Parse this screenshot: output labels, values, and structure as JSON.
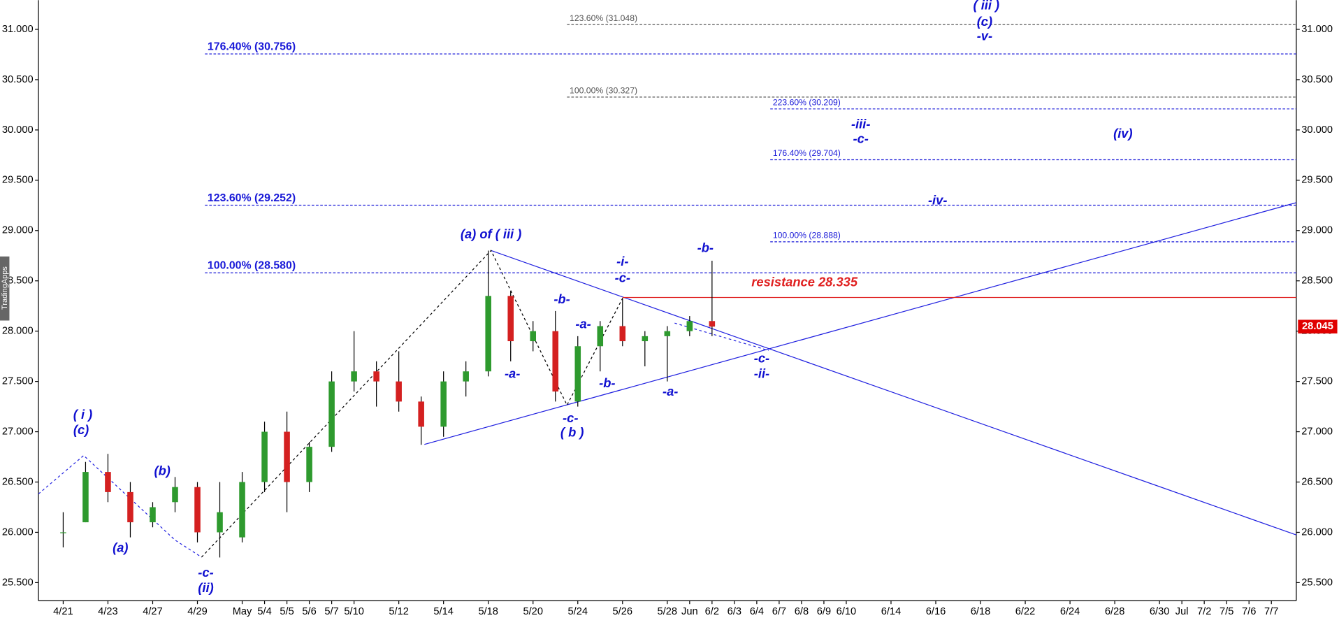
{
  "chart_data": {
    "type": "candlestick",
    "watermark": "TradingApps",
    "categories": [
      "4/21",
      null,
      "4/23",
      null,
      "4/27",
      null,
      "4/29",
      null,
      "May",
      "5/4",
      "5/5",
      "5/6",
      "5/7",
      "5/10",
      null,
      "5/12",
      null,
      "5/14",
      null,
      "5/18",
      null,
      "5/20",
      null,
      "5/24",
      null,
      "5/26",
      null,
      "5/28",
      "Jun",
      "6/2",
      "6/3",
      "6/4",
      "6/7",
      "6/8",
      "6/9",
      "6/10",
      null,
      "6/14",
      null,
      "6/16",
      null,
      "6/18",
      null,
      "6/22",
      null,
      "6/24",
      null,
      "6/28",
      null,
      "6/30",
      "Jul",
      "7/2",
      "7/5",
      "7/6",
      "7/7"
    ],
    "open": [
      26.0,
      26.1,
      26.6,
      26.4,
      26.1,
      26.3,
      26.45,
      26.0,
      25.95,
      26.5,
      27.0,
      26.5,
      26.85,
      27.5,
      27.6,
      27.5,
      27.3,
      27.05,
      27.5,
      27.6,
      28.35,
      27.9,
      28.0,
      27.3,
      27.85,
      28.05,
      27.9,
      27.95,
      28.0,
      28.1,
      null,
      null,
      null,
      null,
      null,
      null,
      null,
      null,
      null,
      null,
      null,
      null,
      null,
      null,
      null,
      null,
      null,
      null,
      null,
      null,
      null,
      null,
      null,
      null,
      null
    ],
    "high": [
      26.2,
      26.7,
      26.78,
      26.5,
      26.3,
      26.55,
      26.5,
      26.5,
      26.6,
      27.1,
      27.2,
      26.9,
      27.6,
      28.0,
      27.7,
      27.8,
      27.35,
      27.6,
      27.7,
      28.8,
      28.4,
      28.1,
      28.2,
      27.95,
      28.1,
      28.33,
      28.0,
      28.05,
      28.15,
      28.7,
      null,
      null,
      null,
      null,
      null,
      null,
      null,
      null,
      null,
      null,
      null,
      null,
      null,
      null,
      null,
      null,
      null,
      null,
      null,
      null,
      null,
      null,
      null,
      null,
      null
    ],
    "low": [
      25.85,
      26.1,
      26.3,
      25.95,
      26.05,
      26.2,
      25.9,
      25.75,
      25.9,
      26.4,
      26.2,
      26.4,
      26.8,
      27.4,
      27.25,
      27.2,
      26.87,
      26.95,
      27.35,
      27.55,
      27.7,
      27.8,
      27.3,
      27.25,
      27.6,
      27.85,
      27.65,
      27.5,
      27.95,
      27.95,
      null,
      null,
      null,
      null,
      null,
      null,
      null,
      null,
      null,
      null,
      null,
      null,
      null,
      null,
      null,
      null,
      null,
      null,
      null,
      null,
      null,
      null,
      null,
      null,
      null
    ],
    "close": [
      26.0,
      26.6,
      26.4,
      26.1,
      26.25,
      26.45,
      26.0,
      26.2,
      26.5,
      27.0,
      26.5,
      26.85,
      27.5,
      27.6,
      27.5,
      27.3,
      27.05,
      27.5,
      27.6,
      28.35,
      27.9,
      28.0,
      27.4,
      27.85,
      28.05,
      27.9,
      27.95,
      28.0,
      28.1,
      28.045,
      null,
      null,
      null,
      null,
      null,
      null,
      null,
      null,
      null,
      null,
      null,
      null,
      null,
      null,
      null,
      null,
      null,
      null,
      null,
      null,
      null,
      null,
      null,
      null,
      null
    ],
    "up_color": "#2e9a2e",
    "down_color": "#d42020",
    "last_price": 28.045,
    "ylim": [
      25.32,
      31.29
    ],
    "yticks": [
      {
        "value": 25.5,
        "label": "25.500"
      },
      {
        "value": 26,
        "label": "26.000"
      },
      {
        "value": 26.5,
        "label": "26.500"
      },
      {
        "value": 27,
        "label": "27.000"
      },
      {
        "value": 27.5,
        "label": "27.500"
      },
      {
        "value": 28,
        "label": "28.000"
      },
      {
        "value": 28.5,
        "label": "28.500"
      },
      {
        "value": 29,
        "label": "29.000"
      },
      {
        "value": 29.5,
        "label": "29.500"
      },
      {
        "value": 30,
        "label": "30.000"
      },
      {
        "value": 30.5,
        "label": "30.500"
      },
      {
        "value": 31,
        "label": "31.000"
      }
    ],
    "levels": [
      {
        "value": 30.756,
        "label": "176.40% (30.756)",
        "group": "major"
      },
      {
        "value": 29.252,
        "label": "123.60% (29.252)",
        "group": "major"
      },
      {
        "value": 28.58,
        "label": "100.00% (28.580)",
        "group": "major"
      },
      {
        "value": 31.048,
        "label": "123.60% (31.048)",
        "group": "gray"
      },
      {
        "value": 30.327,
        "label": "100.00% (30.327)",
        "group": "gray"
      },
      {
        "value": 30.209,
        "label": "223.60% (30.209)",
        "group": "minor"
      },
      {
        "value": 29.704,
        "label": "176.40% (29.704)",
        "group": "minor"
      },
      {
        "value": 28.888,
        "label": "100.00% (28.888)",
        "group": "minor"
      }
    ],
    "resistance": {
      "value": 28.335,
      "label": "resistance 28.335",
      "color": "#e02020"
    },
    "annotations": [
      "( i )",
      "(c)",
      "(a)",
      "(b)",
      "-c-",
      "(ii)",
      "(a) of ( iii )",
      "-a-",
      "-b-",
      "-c-",
      "( b )",
      "-a-",
      "-b-",
      "-i-",
      "-c-",
      "-a-",
      "-b-",
      "-c-",
      "-ii-",
      "( iii )",
      "(c)",
      "-v-",
      "-iii-",
      "-c-",
      "(iv)",
      "-iv-"
    ]
  }
}
